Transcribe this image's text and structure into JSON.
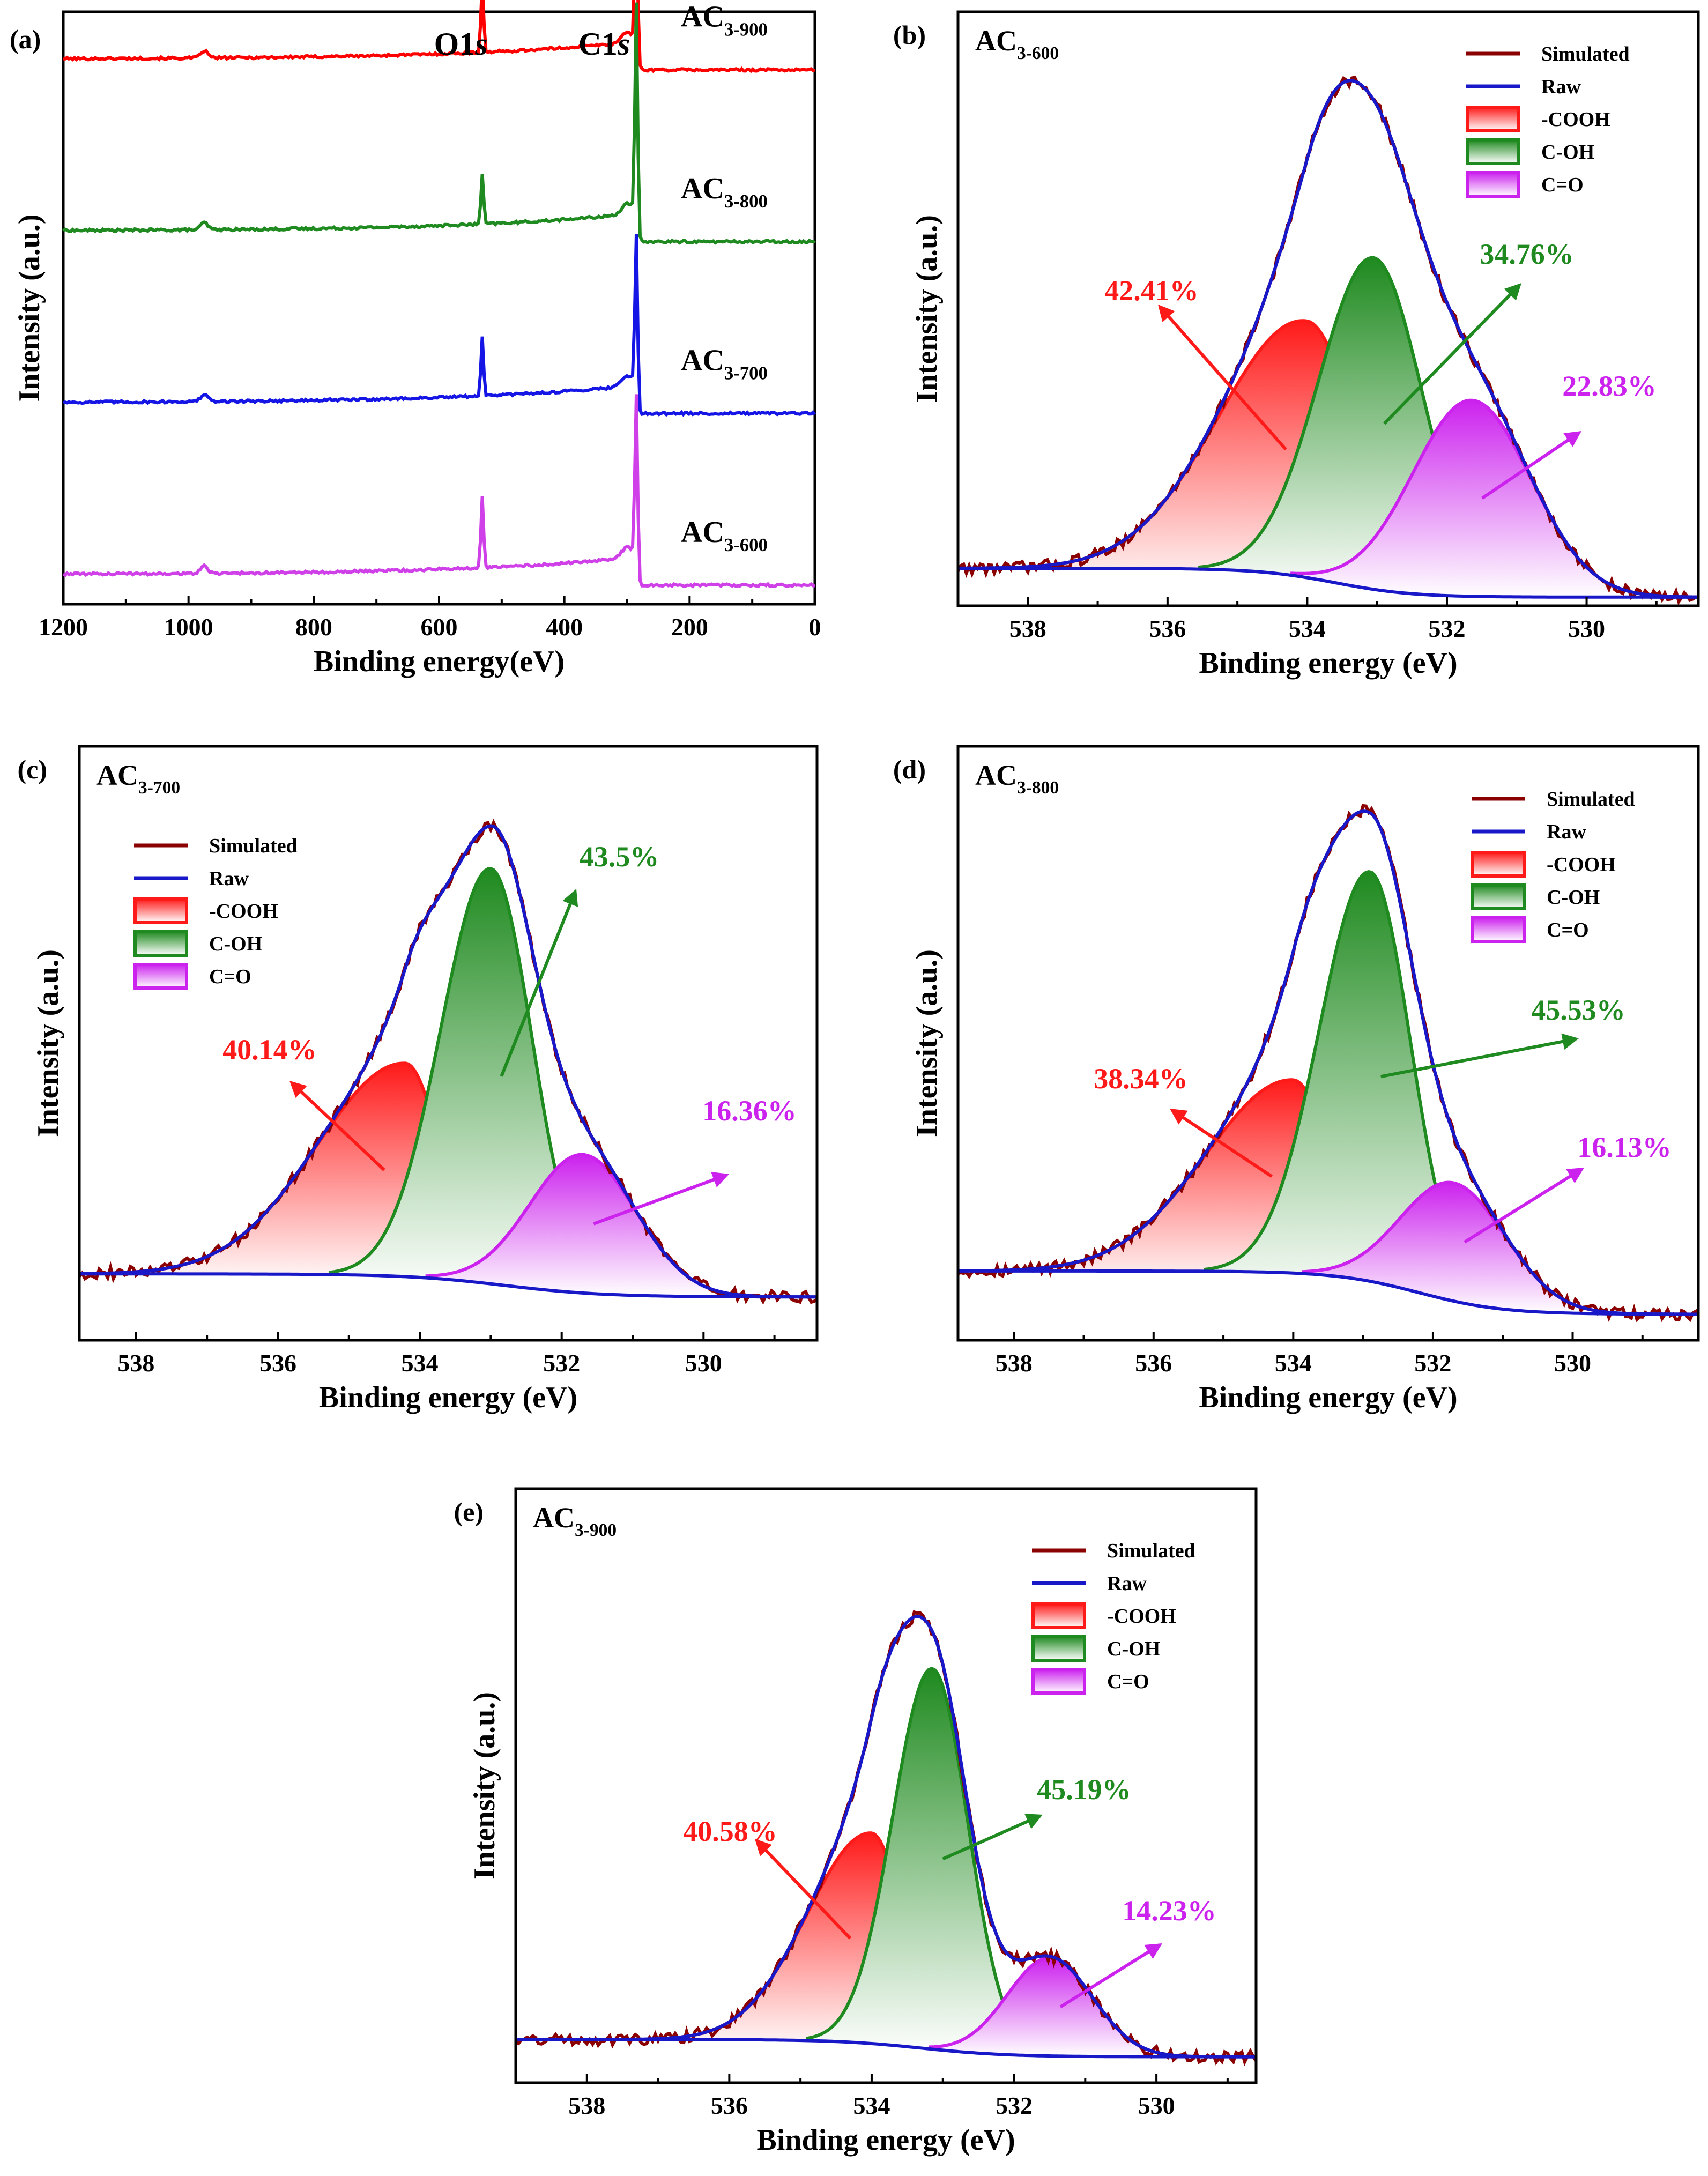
{
  "figure": {
    "colors": {
      "simulated": "#8b0000",
      "raw": "#1818c8",
      "cooh": "#ff1a1a",
      "coh": "#1f8a1f",
      "co": "#cc22ee",
      "survey_900": "#ff0000",
      "survey_800": "#1f8a1f",
      "survey_700": "#1515e6",
      "survey_600": "#d040e8"
    },
    "legend": {
      "simulated": "Simulated",
      "raw": "Raw",
      "cooh": "-COOH",
      "coh": "C-OH",
      "co": "C=O"
    }
  },
  "chart_data": [
    {
      "panel": "(a)",
      "type": "line",
      "title": "",
      "xlabel": "Binding energy(eV)",
      "ylabel": "Intensity (a.u.)",
      "xlim": [
        1200,
        0
      ],
      "xticks": [
        1200,
        1000,
        800,
        600,
        400,
        200,
        0
      ],
      "yticks": false,
      "peak_annotations": [
        {
          "base": "O1",
          "italic": "s",
          "x": 531
        },
        {
          "base": "C1",
          "italic": "s",
          "x": 285
        }
      ],
      "series": [
        {
          "name": "AC3-900",
          "base": "AC",
          "sub": "3-900",
          "color_key": "survey_900",
          "offset": 0.92,
          "o1s_height": 0.12,
          "c1s_height": 0.27
        },
        {
          "name": "AC3-800",
          "base": "AC",
          "sub": "3-800",
          "color_key": "survey_800",
          "offset": 0.63,
          "o1s_height": 0.085,
          "c1s_height": 0.38
        },
        {
          "name": "AC3-700",
          "base": "AC",
          "sub": "3-700",
          "color_key": "survey_700",
          "offset": 0.34,
          "o1s_height": 0.1,
          "c1s_height": 0.28
        },
        {
          "name": "AC3-600",
          "base": "AC",
          "sub": "3-600",
          "color_key": "survey_600",
          "offset": 0.05,
          "o1s_height": 0.12,
          "c1s_height": 0.3
        }
      ]
    },
    {
      "panel": "(b)",
      "sample": "AC3-600",
      "sample_base": "AC",
      "sample_sub": "3-600",
      "type": "area",
      "xlabel": "Binding energy (eV)",
      "ylabel": "Intensity (a.u.)",
      "xlim": [
        539,
        528.4
      ],
      "xticks": [
        538,
        536,
        534,
        532,
        530
      ],
      "ylim": [
        0,
        1.03
      ],
      "baseline": {
        "high": 0.065,
        "low": 0.015,
        "center": 533.6,
        "width": 0.55
      },
      "components": [
        {
          "name": "-COOH",
          "key": "cooh",
          "center": 534.0,
          "height": 0.445,
          "sigma_left": 1.25,
          "sigma_right": 0.72,
          "percent": "42.41%"
        },
        {
          "name": "C-OH",
          "key": "coh",
          "center": 533.05,
          "height": 0.575,
          "sigma_left": 0.78,
          "sigma_right": 0.7,
          "percent": "34.76%"
        },
        {
          "name": "C=O",
          "key": "co",
          "center": 531.65,
          "height": 0.34,
          "sigma_left": 0.85,
          "sigma_right": 0.85,
          "percent": "22.83%"
        }
      ],
      "legend_position": "top-right"
    },
    {
      "panel": "(c)",
      "sample": "AC3-700",
      "sample_base": "AC",
      "sample_sub": "3-700",
      "type": "area",
      "xlabel": "Binding energy (eV)",
      "ylabel": "Intensity (a.u.)",
      "xlim": [
        538.8,
        528.4
      ],
      "xticks": [
        538,
        536,
        534,
        532,
        530
      ],
      "ylim": [
        0,
        1.03
      ],
      "baseline": {
        "high": 0.115,
        "low": 0.075,
        "center": 532.8,
        "width": 0.7
      },
      "components": [
        {
          "name": "-COOH",
          "key": "cooh",
          "center": 534.2,
          "height": 0.37,
          "sigma_left": 1.25,
          "sigma_right": 0.5,
          "percent": "40.14%"
        },
        {
          "name": "C-OH",
          "key": "coh",
          "center": 533.0,
          "height": 0.72,
          "sigma_left": 0.7,
          "sigma_right": 0.58,
          "percent": "43.5%"
        },
        {
          "name": "C=O",
          "key": "co",
          "center": 531.7,
          "height": 0.24,
          "sigma_left": 0.75,
          "sigma_right": 0.75,
          "percent": "16.36%"
        }
      ],
      "legend_position": "top-left"
    },
    {
      "panel": "(d)",
      "sample": "AC3-800",
      "sample_base": "AC",
      "sample_sub": "3-800",
      "type": "area",
      "xlabel": "Binding energy (eV)",
      "ylabel": "Intensity (a.u.)",
      "xlim": [
        538.8,
        528.2
      ],
      "xticks": [
        538,
        536,
        534,
        532,
        530
      ],
      "ylim": [
        0,
        1.03
      ],
      "baseline": {
        "high": 0.12,
        "low": 0.045,
        "center": 532.2,
        "width": 0.6
      },
      "components": [
        {
          "name": "-COOH",
          "key": "cooh",
          "center": 534.0,
          "height": 0.335,
          "sigma_left": 1.25,
          "sigma_right": 0.55,
          "percent": "38.34%"
        },
        {
          "name": "C-OH",
          "key": "coh",
          "center": 532.9,
          "height": 0.71,
          "sigma_left": 0.72,
          "sigma_right": 0.58,
          "percent": "45.53%"
        },
        {
          "name": "C=O",
          "key": "co",
          "center": 531.7,
          "height": 0.205,
          "sigma_left": 0.75,
          "sigma_right": 0.75,
          "percent": "16.13%"
        }
      ],
      "legend_position": "top-right"
    },
    {
      "panel": "(e)",
      "sample": "AC3-900",
      "sample_base": "AC",
      "sample_sub": "3-900",
      "type": "area",
      "xlabel": "Binding energy (eV)",
      "ylabel": "Intensity (a.u.)",
      "xlim": [
        539,
        528.6
      ],
      "xticks": [
        538,
        536,
        534,
        532,
        530
      ],
      "ylim": [
        0,
        1.03
      ],
      "baseline": {
        "high": 0.075,
        "low": 0.045,
        "center": 533.3,
        "width": 0.6
      },
      "components": [
        {
          "name": "-COOH",
          "key": "cooh",
          "center": 534.0,
          "height": 0.365,
          "sigma_left": 0.9,
          "sigma_right": 0.45,
          "percent": "40.58%"
        },
        {
          "name": "C-OH",
          "key": "coh",
          "center": 533.15,
          "height": 0.66,
          "sigma_left": 0.55,
          "sigma_right": 0.5,
          "percent": "45.19%"
        },
        {
          "name": "C=O",
          "key": "co",
          "center": 531.5,
          "height": 0.17,
          "sigma_left": 0.6,
          "sigma_right": 0.6,
          "percent": "14.23%"
        }
      ],
      "legend_position": "top-right"
    }
  ]
}
